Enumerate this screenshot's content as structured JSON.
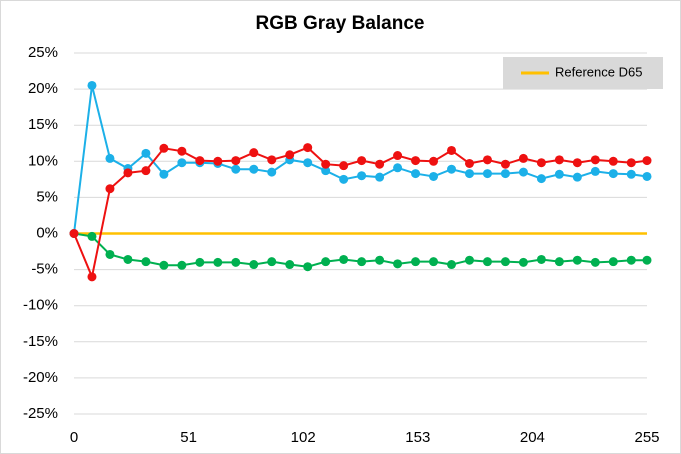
{
  "chart_data": {
    "type": "line",
    "title": "RGB Gray Balance",
    "x": [
      0,
      8,
      16,
      24,
      32,
      40,
      48,
      56,
      64,
      72,
      80,
      88,
      96,
      104,
      112,
      120,
      128,
      136,
      144,
      152,
      160,
      168,
      176,
      184,
      192,
      200,
      208,
      216,
      224,
      232,
      240,
      248,
      255
    ],
    "series": [
      {
        "name": "Reference D65",
        "color": "#ffc000",
        "markers": false,
        "values": [
          0,
          0,
          0,
          0,
          0,
          0,
          0,
          0,
          0,
          0,
          0,
          0,
          0,
          0,
          0,
          0,
          0,
          0,
          0,
          0,
          0,
          0,
          0,
          0,
          0,
          0,
          0,
          0,
          0,
          0,
          0,
          0,
          0
        ]
      },
      {
        "color": "#00b050",
        "markers": true,
        "values": [
          0,
          -0.4,
          -2.9,
          -3.6,
          -3.9,
          -4.4,
          -4.4,
          -4.0,
          -4.0,
          -4.0,
          -4.3,
          -3.9,
          -4.3,
          -4.6,
          -3.9,
          -3.6,
          -3.9,
          -3.7,
          -4.2,
          -3.9,
          -3.9,
          -4.3,
          -3.7,
          -3.9,
          -3.9,
          -4.0,
          -3.6,
          -3.9,
          -3.7,
          -4.0,
          -3.9,
          -3.7,
          -3.7
        ]
      },
      {
        "color": "#1cb0e8",
        "markers": true,
        "values": [
          0,
          20.5,
          10.4,
          9.0,
          11.1,
          8.2,
          9.8,
          9.8,
          9.7,
          8.9,
          8.9,
          8.5,
          10.2,
          9.8,
          8.7,
          7.5,
          8.0,
          7.8,
          9.1,
          8.3,
          7.9,
          8.9,
          8.3,
          8.3,
          8.3,
          8.5,
          7.6,
          8.2,
          7.8,
          8.6,
          8.3,
          8.2,
          7.9
        ]
      },
      {
        "color": "#ee1111",
        "markers": true,
        "values": [
          0,
          -6.0,
          6.2,
          8.4,
          8.7,
          11.8,
          11.4,
          10.1,
          10.0,
          10.1,
          11.2,
          10.2,
          10.9,
          11.9,
          9.6,
          9.4,
          10.1,
          9.6,
          10.8,
          10.1,
          10.0,
          11.5,
          9.7,
          10.2,
          9.6,
          10.4,
          9.8,
          10.2,
          9.8,
          10.2,
          10.0,
          9.8,
          10.1
        ]
      }
    ],
    "xlim": [
      0,
      255
    ],
    "xticks": [
      0,
      51,
      102,
      153,
      204,
      255
    ],
    "ylim": [
      -25,
      25
    ],
    "yticks": [
      {
        "value": -25,
        "label": "-25%"
      },
      {
        "value": -20,
        "label": "-20%"
      },
      {
        "value": -15,
        "label": "-15%"
      },
      {
        "value": -10,
        "label": "-10%"
      },
      {
        "value": -5,
        "label": "-5%"
      },
      {
        "value": 0,
        "label": "0%"
      },
      {
        "value": 5,
        "label": "5%"
      },
      {
        "value": 10,
        "label": "10%"
      },
      {
        "value": 15,
        "label": "15%"
      },
      {
        "value": 20,
        "label": "20%"
      },
      {
        "value": 25,
        "label": "25%"
      }
    ],
    "grid": true,
    "legend": "upper right"
  }
}
